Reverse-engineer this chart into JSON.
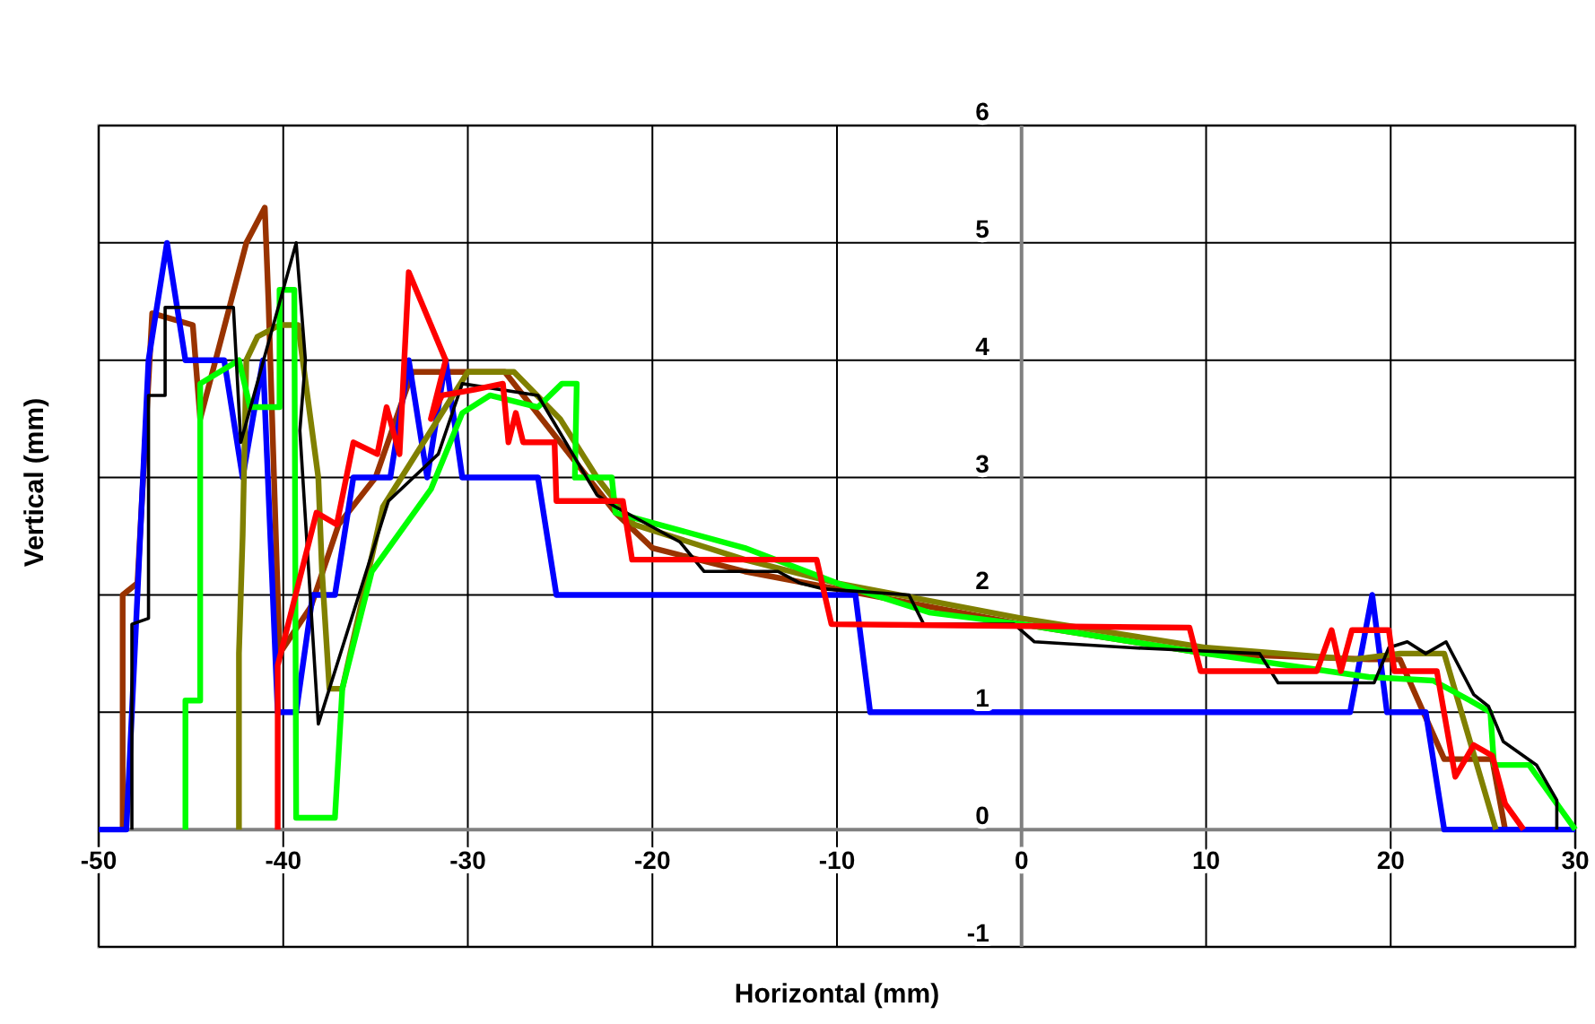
{
  "chart_data": {
    "type": "line",
    "xlabel": "Horizontal (mm)",
    "ylabel": "Vertical (mm)",
    "xlim": [
      -50,
      30
    ],
    "ylim": [
      -1,
      6
    ],
    "xticks": [
      -50,
      -40,
      -30,
      -20,
      -10,
      0,
      10,
      20,
      30
    ],
    "yticks": [
      -1,
      0,
      1,
      2,
      3,
      4,
      5,
      6
    ],
    "grid": true,
    "marker": "none",
    "line_style": "solid",
    "series": [
      {
        "color": "#993300",
        "x": [
          -48.7,
          -48.7,
          -47.9,
          -47.1,
          -44.9,
          -44.5,
          -42.0,
          -41.0,
          -40.8,
          -40.2,
          -38.5,
          -37.0,
          -35.0,
          -33.0,
          -28.0,
          -25.0,
          -22.0,
          -20.0,
          -15.0,
          -10.0,
          0,
          10,
          19,
          20.5,
          22.9,
          25.5,
          26.2
        ],
        "values": [
          0,
          2.0,
          2.1,
          4.4,
          4.3,
          3.5,
          5.0,
          5.3,
          4.5,
          1.5,
          1.9,
          2.6,
          3.0,
          3.9,
          3.9,
          3.3,
          2.7,
          2.4,
          2.2,
          2.05,
          1.75,
          1.5,
          1.45,
          1.45,
          0.6,
          0.6,
          0
        ]
      },
      {
        "color": "#0000ff",
        "x": [
          -50,
          -48.5,
          -47.3,
          -46.3,
          -45.3,
          -43.2,
          -42.2,
          -41.1,
          -40.3,
          -39.3,
          -38.4,
          -37.2,
          -36.2,
          -34.2,
          -33.2,
          -32.2,
          -31.2,
          -30.3,
          -26.2,
          -25.2,
          -9.0,
          -8.2,
          17.8,
          19.0,
          19.8,
          21.9,
          22.9,
          30
        ],
        "values": [
          0,
          0,
          4.0,
          5.0,
          4.0,
          4.0,
          3.0,
          4.0,
          1.0,
          1.0,
          2.0,
          2.0,
          3.0,
          3.0,
          4.0,
          3.0,
          4.0,
          3.0,
          3.0,
          2.0,
          2.0,
          1.0,
          1.0,
          2.0,
          1.0,
          1.0,
          0,
          0
        ]
      },
      {
        "color": "#808000",
        "x": [
          -42.4,
          -42.4,
          -42.2,
          -42.0,
          -41.4,
          -40.2,
          -39.2,
          -38.1,
          -37.9,
          -37.5,
          -36.8,
          -34.6,
          -32.0,
          -30.0,
          -27.5,
          -25.0,
          -23.0,
          -21.0,
          -15.0,
          -10.0,
          0,
          10,
          18,
          20.5,
          22.9,
          25.7
        ],
        "values": [
          0,
          1.5,
          2.5,
          4.0,
          4.2,
          4.3,
          4.3,
          3.0,
          2.2,
          1.2,
          1.2,
          2.75,
          3.4,
          3.9,
          3.9,
          3.5,
          3.0,
          2.6,
          2.3,
          2.1,
          1.8,
          1.55,
          1.45,
          1.5,
          1.5,
          0
        ]
      },
      {
        "color": "#00ff00",
        "x": [
          -45.3,
          -45.3,
          -44.5,
          -44.5,
          -42.4,
          -41.8,
          -40.2,
          -40.2,
          -39.4,
          -39.3,
          -37.2,
          -36.8,
          -35.2,
          -32.0,
          -30.3,
          -28.8,
          -26.2,
          -24.9,
          -24.1,
          -24.2,
          -22.2,
          -22.0,
          -15,
          -10,
          -5,
          0,
          10,
          18.8,
          22.3,
          24.3,
          25.4,
          25.6,
          27.5,
          30
        ],
        "values": [
          0,
          1.1,
          1.1,
          3.8,
          4.0,
          3.6,
          3.6,
          4.6,
          4.6,
          0.1,
          0.1,
          1.2,
          2.2,
          2.9,
          3.55,
          3.7,
          3.6,
          3.8,
          3.8,
          3.0,
          3.0,
          2.7,
          2.4,
          2.1,
          1.85,
          1.75,
          1.5,
          1.3,
          1.27,
          1.1,
          1.0,
          0.55,
          0.55,
          0
        ]
      },
      {
        "color": "#000000",
        "x": [
          -48.2,
          -48.2,
          -47.3,
          -47.3,
          -46.4,
          -46.4,
          -42.7,
          -42.3,
          -39.3,
          -38.8,
          -39.1,
          -38.1,
          -34.3,
          -31.6,
          -30.3,
          -26.2,
          -23.0,
          -22.0,
          -18.5,
          -17.2,
          -13.2,
          -12.0,
          -10.7,
          -6.1,
          -5.3,
          -0.4,
          0.7,
          5.9,
          12.9,
          13.9,
          19.1,
          19.9,
          20.9,
          21.9,
          23.0,
          24.5,
          25.3,
          26.1,
          27.9,
          29.0,
          29.0
        ],
        "values": [
          0,
          1.75,
          1.8,
          3.7,
          3.7,
          4.45,
          4.45,
          3.3,
          5.0,
          4.0,
          3.4,
          0.9,
          2.8,
          3.2,
          3.8,
          3.7,
          2.85,
          2.75,
          2.45,
          2.2,
          2.2,
          2.1,
          2.05,
          2.0,
          1.75,
          1.75,
          1.6,
          1.55,
          1.5,
          1.25,
          1.25,
          1.55,
          1.6,
          1.5,
          1.6,
          1.15,
          1.05,
          0.75,
          0.55,
          0.25,
          0
        ]
      },
      {
        "color": "#ff0000",
        "x": [
          -40.3,
          -40.3,
          -38.2,
          -37.1,
          -36.2,
          -34.9,
          -34.4,
          -33.7,
          -33.2,
          -31.2,
          -32.0,
          -31.4,
          -29.6,
          -28.1,
          -27.8,
          -27.4,
          -27.0,
          -25.3,
          -25.2,
          -21.6,
          -21.1,
          -11.1,
          -10.3,
          9.1,
          9.7,
          16.0,
          16.8,
          17.3,
          17.9,
          19.9,
          20.2,
          22.5,
          23.5,
          24.5,
          25.5,
          26.2,
          27.2
        ],
        "values": [
          0,
          1.4,
          2.7,
          2.6,
          3.3,
          3.2,
          3.6,
          3.2,
          4.75,
          4.0,
          3.5,
          3.7,
          3.75,
          3.8,
          3.3,
          3.55,
          3.3,
          3.3,
          2.8,
          2.8,
          2.3,
          2.3,
          1.75,
          1.72,
          1.35,
          1.35,
          1.7,
          1.35,
          1.7,
          1.7,
          1.35,
          1.35,
          0.45,
          0.72,
          0.63,
          0.22,
          0
        ]
      }
    ]
  }
}
